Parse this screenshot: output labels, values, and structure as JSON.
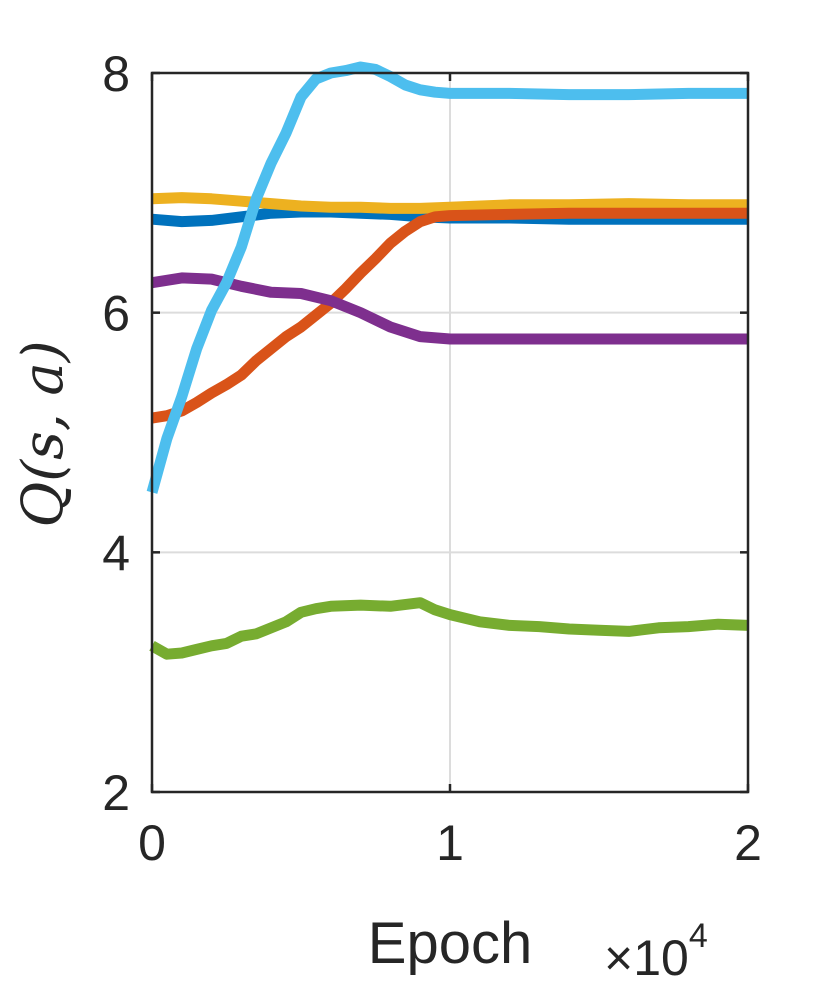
{
  "chart_data": {
    "type": "line",
    "xlabel": "Epoch",
    "ylabel": "Q(s, a)",
    "x_multiplier": "×10",
    "x_multiplier_exponent": "4",
    "xlim": [
      0,
      2
    ],
    "ylim": [
      2,
      8
    ],
    "xticks": [
      0,
      1,
      2
    ],
    "yticks": [
      2,
      4,
      6,
      8
    ],
    "grid": true,
    "series": [
      {
        "color": "#0072BD",
        "x": [
          0,
          0.1,
          0.2,
          0.3,
          0.4,
          0.5,
          0.6,
          0.7,
          0.8,
          0.9,
          1.0,
          1.2,
          1.4,
          1.6,
          1.8,
          2.0
        ],
        "y": [
          6.78,
          6.76,
          6.77,
          6.8,
          6.83,
          6.84,
          6.84,
          6.83,
          6.82,
          6.8,
          6.79,
          6.79,
          6.78,
          6.78,
          6.78,
          6.78
        ]
      },
      {
        "color": "#EDB120",
        "x": [
          0,
          0.1,
          0.2,
          0.3,
          0.4,
          0.5,
          0.6,
          0.7,
          0.8,
          0.9,
          1.0,
          1.2,
          1.4,
          1.6,
          1.8,
          2.0
        ],
        "y": [
          6.95,
          6.96,
          6.95,
          6.93,
          6.91,
          6.89,
          6.88,
          6.88,
          6.87,
          6.87,
          6.88,
          6.9,
          6.9,
          6.91,
          6.9,
          6.9
        ]
      },
      {
        "color": "#D95319",
        "x": [
          0,
          0.05,
          0.1,
          0.15,
          0.2,
          0.25,
          0.3,
          0.35,
          0.4,
          0.45,
          0.5,
          0.55,
          0.6,
          0.65,
          0.7,
          0.75,
          0.8,
          0.85,
          0.9,
          0.95,
          1.0,
          1.2,
          1.4,
          1.6,
          1.8,
          2.0
        ],
        "y": [
          5.12,
          5.14,
          5.18,
          5.25,
          5.33,
          5.4,
          5.48,
          5.6,
          5.7,
          5.8,
          5.88,
          5.98,
          6.08,
          6.2,
          6.33,
          6.45,
          6.58,
          6.68,
          6.76,
          6.8,
          6.81,
          6.82,
          6.83,
          6.83,
          6.83,
          6.83
        ]
      },
      {
        "color": "#7E2F8E",
        "x": [
          0,
          0.1,
          0.2,
          0.3,
          0.4,
          0.5,
          0.6,
          0.7,
          0.8,
          0.9,
          1.0,
          1.2,
          1.4,
          1.6,
          1.8,
          2.0
        ],
        "y": [
          6.25,
          6.29,
          6.28,
          6.22,
          6.17,
          6.16,
          6.1,
          6.0,
          5.88,
          5.8,
          5.78,
          5.78,
          5.78,
          5.78,
          5.78,
          5.78
        ]
      },
      {
        "color": "#4DBEEE",
        "x": [
          0,
          0.05,
          0.1,
          0.15,
          0.2,
          0.25,
          0.3,
          0.35,
          0.4,
          0.45,
          0.5,
          0.55,
          0.6,
          0.65,
          0.7,
          0.75,
          0.8,
          0.85,
          0.9,
          0.95,
          1.0,
          1.2,
          1.4,
          1.6,
          1.8,
          2.0
        ],
        "y": [
          4.5,
          4.95,
          5.3,
          5.7,
          6.02,
          6.25,
          6.55,
          6.95,
          7.25,
          7.5,
          7.8,
          7.95,
          8.0,
          8.02,
          8.05,
          8.03,
          7.97,
          7.9,
          7.86,
          7.84,
          7.83,
          7.83,
          7.82,
          7.82,
          7.83,
          7.83
        ]
      },
      {
        "color": "#77AC30",
        "x": [
          0,
          0.05,
          0.1,
          0.15,
          0.2,
          0.25,
          0.3,
          0.35,
          0.4,
          0.45,
          0.5,
          0.55,
          0.6,
          0.7,
          0.8,
          0.9,
          0.95,
          1.0,
          1.1,
          1.2,
          1.3,
          1.4,
          1.5,
          1.6,
          1.7,
          1.8,
          1.9,
          2.0
        ],
        "y": [
          3.22,
          3.15,
          3.16,
          3.19,
          3.22,
          3.24,
          3.3,
          3.32,
          3.37,
          3.42,
          3.5,
          3.53,
          3.55,
          3.56,
          3.55,
          3.58,
          3.52,
          3.48,
          3.42,
          3.39,
          3.38,
          3.36,
          3.35,
          3.34,
          3.37,
          3.38,
          3.4,
          3.39
        ]
      }
    ]
  }
}
